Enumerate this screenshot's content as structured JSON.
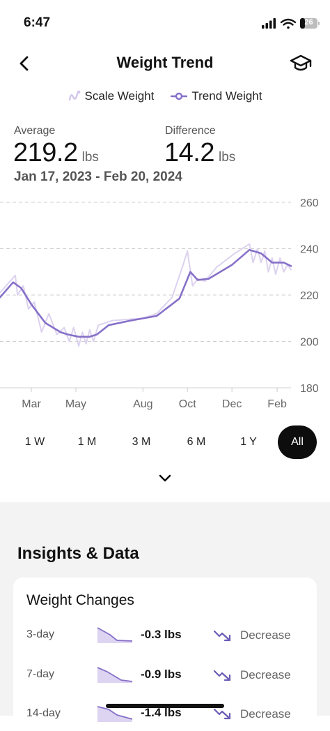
{
  "status_bar": {
    "time": "6:47",
    "battery": "26"
  },
  "header": {
    "title": "Weight Trend"
  },
  "legend": {
    "scale_label": "Scale Weight",
    "trend_label": "Trend Weight"
  },
  "stats": {
    "average_label": "Average",
    "average_value": "219.2",
    "average_unit": "lbs",
    "difference_label": "Difference",
    "difference_value": "14.2",
    "difference_unit": "lbs",
    "date_range": "Jan 17, 2023 - Feb 20, 2024"
  },
  "colors": {
    "trend": "#8670c8",
    "scale": "#dcd2ef",
    "active_range_bg": "#0d0d0d"
  },
  "chart_data": {
    "type": "line",
    "x_ticks": [
      "Mar",
      "May",
      "Aug",
      "Oct",
      "Dec",
      "Feb"
    ],
    "y_ticks": [
      "260",
      "240",
      "220",
      "200",
      "180"
    ],
    "ylim": [
      180,
      260
    ],
    "grid": true,
    "x_unit": "date",
    "series": [
      {
        "name": "Trend Weight",
        "x": [
          "2023-01-17",
          "2023-02-04",
          "2023-02-15",
          "2023-03-01",
          "2023-03-20",
          "2023-04-10",
          "2023-04-20",
          "2023-05-05",
          "2023-05-20",
          "2023-05-30",
          "2023-06-15",
          "2023-07-15",
          "2023-08-20",
          "2023-09-20",
          "2023-10-05",
          "2023-10-15",
          "2023-10-30",
          "2023-12-01",
          "2023-12-25",
          "2024-01-10",
          "2024-01-25",
          "2024-02-10",
          "2024-02-20"
        ],
        "values": [
          219,
          225.5,
          223,
          216,
          208,
          204,
          203,
          202,
          202,
          203,
          207,
          209,
          211,
          218.5,
          230,
          226.5,
          227,
          233,
          239.5,
          238,
          234,
          234,
          232.5
        ]
      },
      {
        "name": "Scale Weight",
        "x": [
          "2023-01-17",
          "2023-02-07",
          "2023-02-10",
          "2023-02-18",
          "2023-02-25",
          "2023-03-05",
          "2023-03-15",
          "2023-03-25",
          "2023-04-05",
          "2023-04-15",
          "2023-04-22",
          "2023-04-28",
          "2023-05-05",
          "2023-05-10",
          "2023-05-15",
          "2023-05-20",
          "2023-05-25",
          "2023-06-01",
          "2023-06-20",
          "2023-08-01",
          "2023-08-20",
          "2023-09-10",
          "2023-09-25",
          "2023-10-01",
          "2023-10-08",
          "2023-10-15",
          "2023-10-25",
          "2023-11-10",
          "2023-12-05",
          "2023-12-25",
          "2023-12-30",
          "2024-01-05",
          "2024-01-10",
          "2024-01-15",
          "2024-01-20",
          "2024-01-25",
          "2024-01-30",
          "2024-02-05",
          "2024-02-10",
          "2024-02-15",
          "2024-02-20"
        ],
        "values": [
          221,
          228.5,
          220,
          224,
          214,
          217,
          204,
          212,
          203,
          206,
          200,
          206,
          198,
          204,
          199,
          205,
          200,
          207,
          209,
          210,
          212,
          219,
          233,
          239,
          224,
          227,
          226,
          232,
          238,
          242,
          234,
          240,
          234,
          239,
          230,
          236,
          229,
          236,
          230,
          233,
          231
        ]
      }
    ]
  },
  "range_selector": {
    "options": [
      "1 W",
      "1 M",
      "3 M",
      "6 M",
      "1 Y",
      "All"
    ],
    "selected": "All"
  },
  "insights": {
    "title": "Insights & Data",
    "weight_changes": {
      "title": "Weight Changes",
      "rows": [
        {
          "period": "3-day",
          "change": "-0.3 lbs",
          "direction": "Decrease"
        },
        {
          "period": "7-day",
          "change": "-0.9 lbs",
          "direction": "Decrease"
        },
        {
          "period": "14-day",
          "change": "-1.4 lbs",
          "direction": "Decrease"
        }
      ]
    }
  }
}
